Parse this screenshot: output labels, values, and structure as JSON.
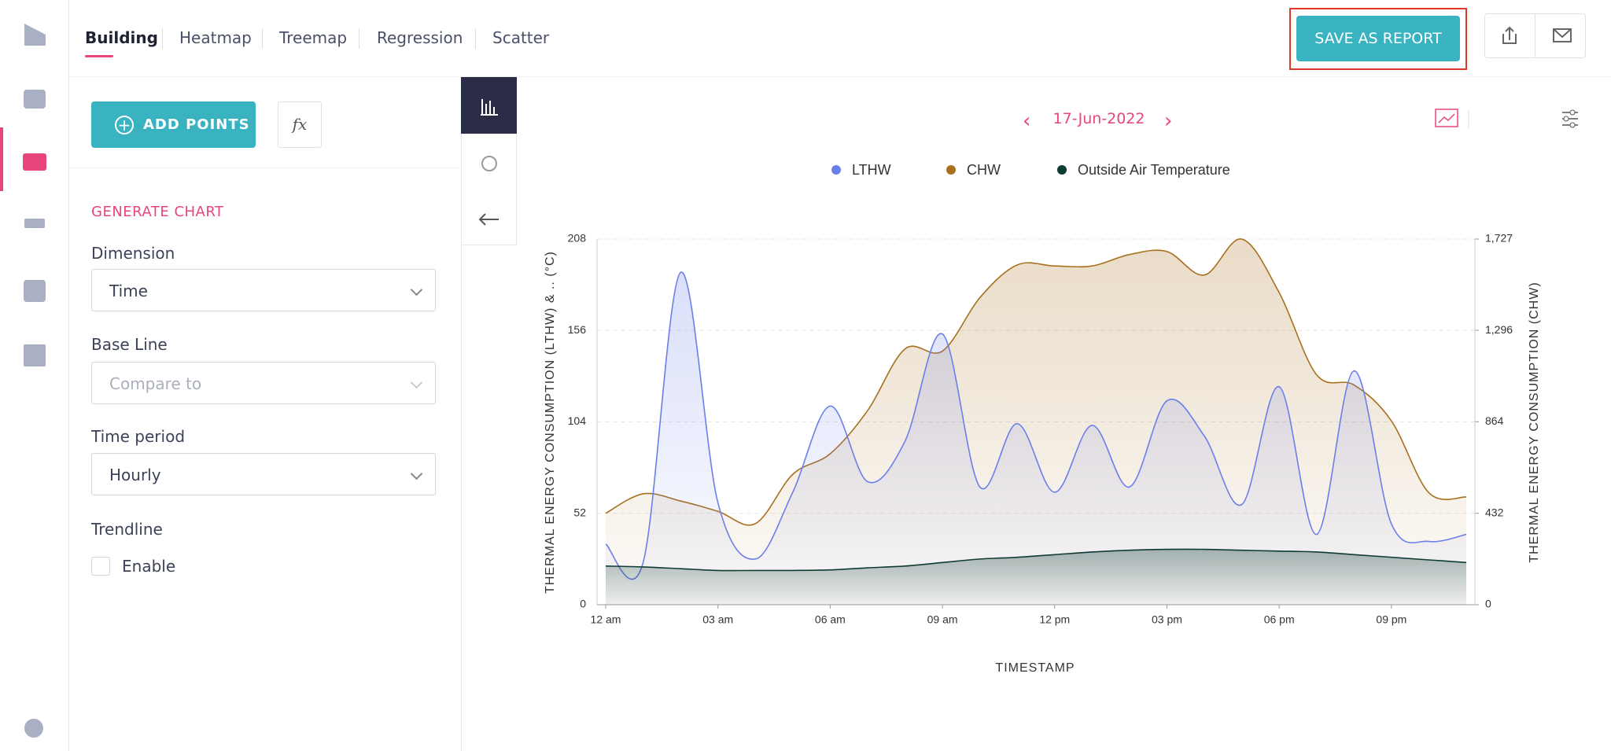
{
  "nav": {
    "tabs": [
      "Building",
      "Heatmap",
      "Treemap",
      "Regression",
      "Scatter"
    ],
    "save_button": "SAVE AS REPORT"
  },
  "panel": {
    "add_points": "ADD POINTS",
    "formula": "fx",
    "section": "GENERATE CHART",
    "fields": [
      {
        "label": "Dimension",
        "value": "Time"
      },
      {
        "label": "Base Line",
        "placeholder": "Compare to"
      },
      {
        "label": "Time period",
        "value": "Hourly"
      }
    ],
    "trendline": {
      "label": "Trendline",
      "checkbox": "Enable"
    }
  },
  "date_nav": {
    "date": "17-Jun-2022"
  },
  "chart_data": {
    "type": "line",
    "ylabel": "THERMAL ENERGY CONSUMPTION (LTHW) & .. (°C)",
    "y2label": "THERMAL ENERGY CONSUMPTION (CHW)",
    "xlabel": "TIMESTAMP",
    "categories": [
      "12 am",
      null,
      null,
      "03 am",
      null,
      null,
      "06 am",
      null,
      null,
      "09 am",
      null,
      null,
      "12 pm",
      null,
      null,
      "03 pm",
      null,
      null,
      "06 pm",
      null,
      null,
      "09 pm",
      null,
      null
    ],
    "ylim": [
      0,
      208
    ],
    "yticks": [
      0,
      52,
      104,
      156,
      208
    ],
    "y2lim": [
      0,
      1727
    ],
    "y2ticks": [
      0,
      432,
      864,
      {
        "value": 1296,
        "label": "1,296"
      },
      {
        "value": 1727,
        "label": "1,727"
      }
    ],
    "grid": true,
    "series": [
      {
        "name": "LTHW",
        "color": "#6b7fe8",
        "values": [
          34.5,
          24,
          189,
          58,
          26,
          64,
          113,
          70,
          93,
          154,
          67,
          103,
          64,
          102,
          67,
          116,
          96,
          57,
          124,
          40,
          133,
          46,
          36,
          40
        ]
      },
      {
        "name": "CHW",
        "color": "#a8701e",
        "axis": "y2",
        "values": [
          432,
          524,
          490,
          441,
          383,
          616,
          713,
          917,
          1208,
          1198,
          1450,
          1605,
          1600,
          1600,
          1654,
          1668,
          1557,
          1727,
          1474,
          1086,
          1038,
          868,
          529,
          509
        ]
      },
      {
        "name": "Outside Air Temperature",
        "color": "#0f3b35",
        "values": [
          22,
          21.5,
          20.5,
          19.5,
          19.5,
          19.5,
          19.8,
          21,
          22,
          24,
          26,
          27,
          28.5,
          30,
          31,
          31.5,
          31.5,
          31,
          30.5,
          30,
          28.5,
          27,
          25.5,
          24
        ]
      }
    ]
  }
}
